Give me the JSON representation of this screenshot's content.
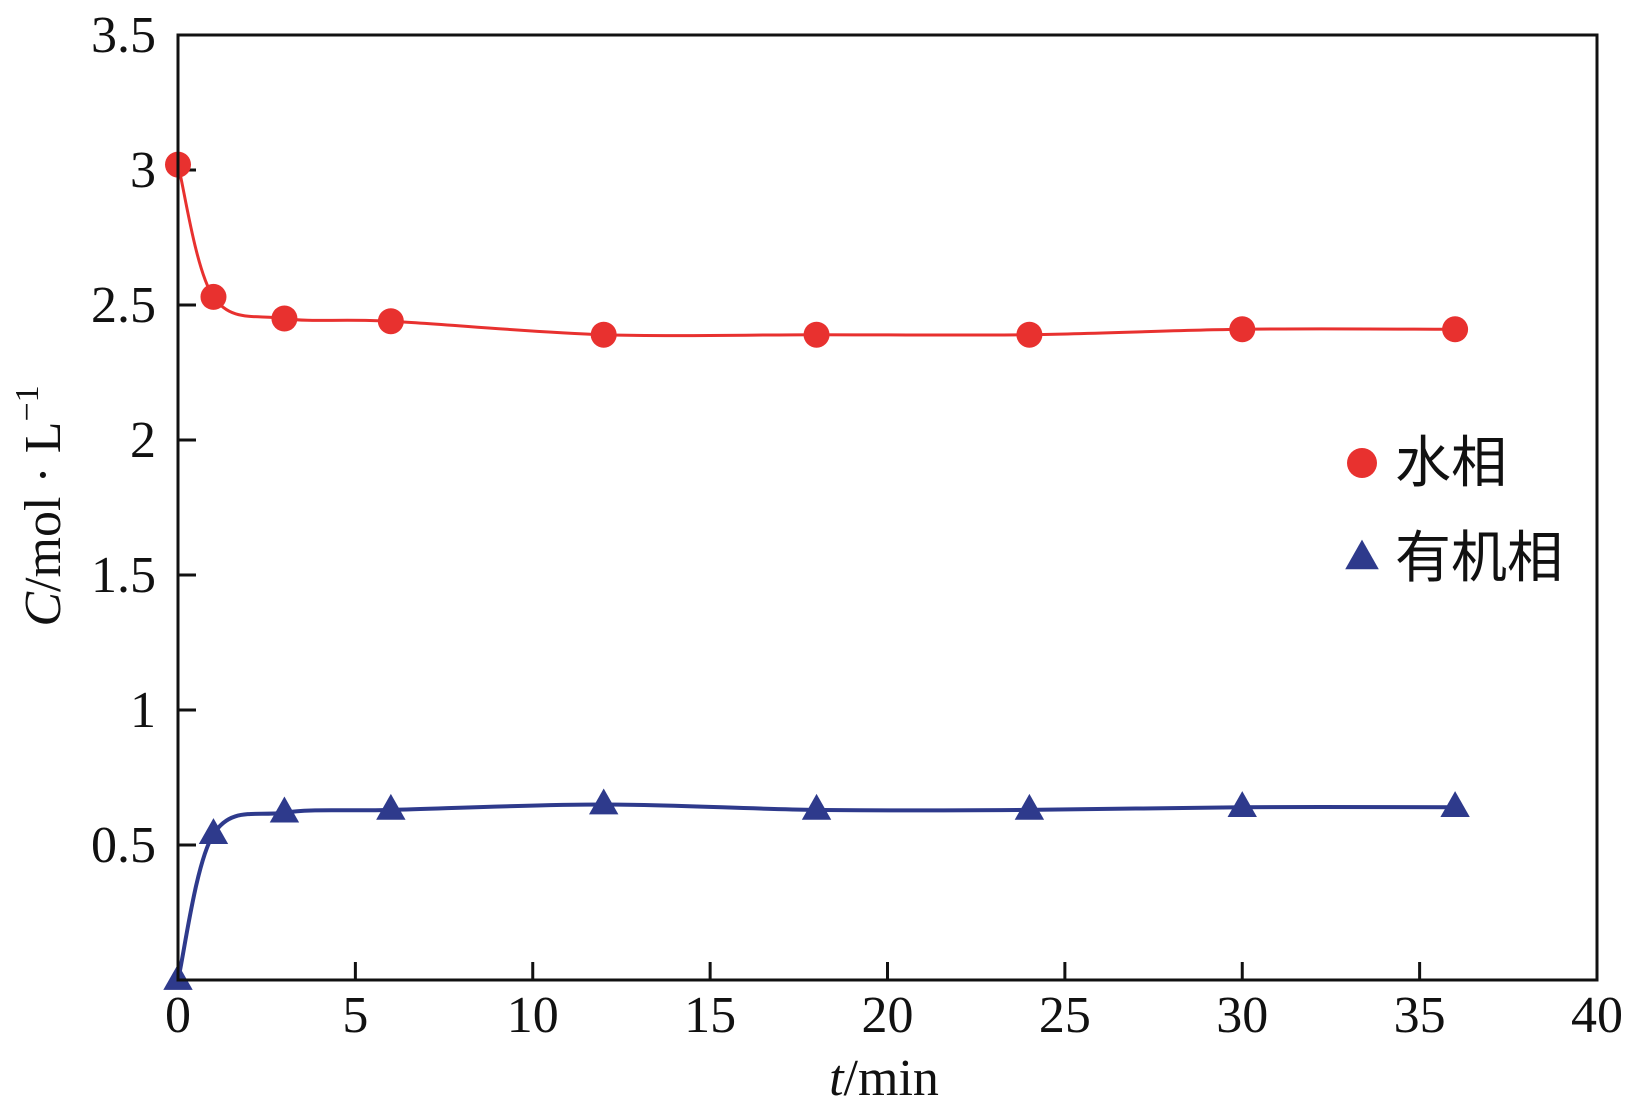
{
  "chart_data": {
    "type": "line",
    "xlabel_italic": "t",
    "xlabel_rest": "/min",
    "ylabel_italic": "C",
    "ylabel_rest": "/mol · L",
    "ylabel_sup": "−1",
    "xlim": [
      0,
      40
    ],
    "ylim": [
      0,
      3.5
    ],
    "x_ticks": [
      0,
      5,
      10,
      15,
      20,
      25,
      30,
      35,
      40
    ],
    "x_tick_labels": [
      "0",
      "5",
      "10",
      "15",
      "20",
      "25",
      "30",
      "35",
      "40"
    ],
    "y_ticks": [
      0.5,
      1,
      1.5,
      2,
      2.5,
      3,
      3.5
    ],
    "y_tick_labels": [
      "0.5",
      "1",
      "1.5",
      "2",
      "2.5",
      "3",
      "3.5"
    ],
    "grid": false,
    "legend_position": "right",
    "series": [
      {
        "name": "水相",
        "marker": "circle",
        "color": "#e8312f",
        "x": [
          0,
          1,
          3,
          6,
          12,
          18,
          24,
          30,
          36
        ],
        "y": [
          3.02,
          2.53,
          2.45,
          2.44,
          2.39,
          2.39,
          2.39,
          2.41,
          2.41
        ]
      },
      {
        "name": "有机相",
        "marker": "triangle",
        "color": "#2e3a8c",
        "x": [
          0,
          1,
          3,
          6,
          12,
          18,
          24,
          30,
          36
        ],
        "y": [
          0.0,
          0.54,
          0.62,
          0.63,
          0.65,
          0.63,
          0.63,
          0.64,
          0.64
        ]
      }
    ]
  }
}
